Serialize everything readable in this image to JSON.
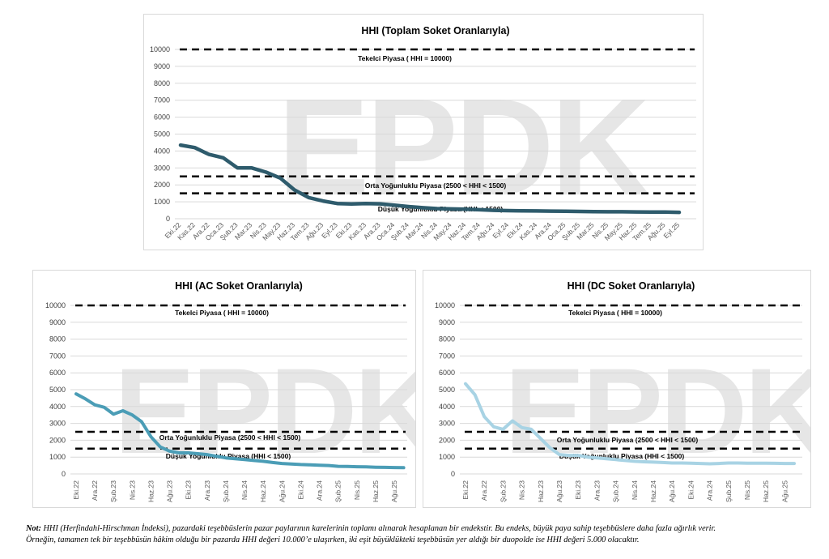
{
  "watermark": "EPDK",
  "colors": {
    "total": "#2e5b6c",
    "ac": "#4b9db6",
    "dc": "#a8d3e4",
    "ref": "#000000",
    "grid": "#d9d9d9"
  },
  "chart_data": [
    {
      "id": "total",
      "type": "line",
      "title": "HHI (Toplam Soket Oranlarıyla)",
      "xlabel": "",
      "ylabel": "",
      "ylim": [
        0,
        10000
      ],
      "yticks": [
        0,
        1000,
        2000,
        3000,
        4000,
        5000,
        6000,
        7000,
        8000,
        9000,
        10000
      ],
      "grid": true,
      "categories": [
        "Eki.22",
        "Kas.22",
        "Ara.22",
        "Oca.23",
        "Şub.23",
        "Mar.23",
        "Nis.23",
        "May.23",
        "Haz.23",
        "Tem.23",
        "Ağu.23",
        "Eyl.23",
        "Eki.23",
        "Kas.23",
        "Ara.23",
        "Oca.24",
        "Şub.24",
        "Mar.24",
        "Nis.24",
        "May.24",
        "Haz.24",
        "Tem.24",
        "Ağu.24",
        "Eyl.24",
        "Eki.24",
        "Kas.24",
        "Ara.24",
        "Oca.25",
        "Şub.25",
        "Mar.25",
        "Nis.25",
        "May.25",
        "Haz.25",
        "Tem.25",
        "Ağu.25",
        "Eyl.25"
      ],
      "tick_every": 1,
      "series": [
        {
          "name": "HHI",
          "values": [
            4350,
            4200,
            3800,
            3600,
            3000,
            3000,
            2750,
            2400,
            1700,
            1250,
            1050,
            900,
            870,
            900,
            880,
            800,
            720,
            650,
            600,
            580,
            560,
            530,
            500,
            480,
            470,
            460,
            450,
            440,
            430,
            420,
            410,
            410,
            400,
            390,
            390,
            380
          ]
        }
      ],
      "reference_lines": [
        {
          "value": 10000,
          "label": "Tekelci Piyasa ( HHI = 10000)"
        },
        {
          "value": 2500,
          "label": "Orta Yoğunluklu Piyasa (2500 < HHI < 1500)"
        },
        {
          "value": 1500,
          "label": "Düşük Yoğunluklu Piyasa (HHI < 1500)"
        }
      ]
    },
    {
      "id": "ac",
      "type": "line",
      "title": "HHI (AC Soket Oranlarıyla)",
      "xlabel": "",
      "ylabel": "",
      "ylim": [
        0,
        10000
      ],
      "yticks": [
        0,
        1000,
        2000,
        3000,
        4000,
        5000,
        6000,
        7000,
        8000,
        9000,
        10000
      ],
      "grid": true,
      "categories": [
        "Eki.22",
        "Kas.22",
        "Ara.22",
        "Oca.23",
        "Şub.23",
        "Mar.23",
        "Nis.23",
        "May.23",
        "Haz.23",
        "Tem.23",
        "Ağu.23",
        "Eyl.23",
        "Eki.23",
        "Kas.23",
        "Ara.23",
        "Oca.24",
        "Şub.24",
        "Mar.24",
        "Nis.24",
        "May.24",
        "Haz.24",
        "Tem.24",
        "Ağu.24",
        "Eyl.24",
        "Eki.24",
        "Kas.24",
        "Ara.24",
        "Oca.25",
        "Şub.25",
        "Mar.25",
        "Nis.25",
        "May.25",
        "Haz.25",
        "Tem.25",
        "Ağu.25",
        "Eyl.25"
      ],
      "tick_every": 2,
      "series": [
        {
          "name": "HHI",
          "values": [
            4750,
            4450,
            4100,
            3950,
            3550,
            3750,
            3500,
            3100,
            2200,
            1600,
            1350,
            1250,
            1250,
            1200,
            1150,
            1050,
            950,
            900,
            850,
            800,
            750,
            680,
            620,
            590,
            560,
            540,
            520,
            500,
            450,
            440,
            430,
            420,
            400,
            390,
            380,
            370
          ]
        }
      ],
      "reference_lines": [
        {
          "value": 10000,
          "label": "Tekelci Piyasa ( HHI = 10000)"
        },
        {
          "value": 2500,
          "label": "Orta Yoğunluklu Piyasa (2500 < HHI < 1500)"
        },
        {
          "value": 1500,
          "label": "Düşük Yoğunluklu Piyasa (HHI < 1500)"
        }
      ]
    },
    {
      "id": "dc",
      "type": "line",
      "title": "HHI (DC Soket Oranlarıyla)",
      "xlabel": "",
      "ylabel": "",
      "ylim": [
        0,
        10000
      ],
      "yticks": [
        0,
        1000,
        2000,
        3000,
        4000,
        5000,
        6000,
        7000,
        8000,
        9000,
        10000
      ],
      "grid": true,
      "categories": [
        "Eki.22",
        "Kas.22",
        "Ara.22",
        "Oca.23",
        "Şub.23",
        "Mar.23",
        "Nis.23",
        "May.23",
        "Haz.23",
        "Tem.23",
        "Ağu.23",
        "Eyl.23",
        "Eki.23",
        "Kas.23",
        "Ara.23",
        "Oca.24",
        "Şub.24",
        "Mar.24",
        "Nis.24",
        "May.24",
        "Haz.24",
        "Tem.24",
        "Ağu.24",
        "Eyl.24",
        "Eki.24",
        "Kas.24",
        "Ara.24",
        "Oca.25",
        "Şub.25",
        "Mar.25",
        "Nis.25",
        "May.25",
        "Haz.25",
        "Tem.25",
        "Ağu.25",
        "Eyl.25"
      ],
      "tick_every": 2,
      "series": [
        {
          "name": "HHI",
          "values": [
            5350,
            4700,
            3400,
            2800,
            2650,
            3150,
            2750,
            2650,
            2100,
            1550,
            1150,
            1100,
            1100,
            1000,
            950,
            900,
            850,
            800,
            750,
            720,
            700,
            680,
            650,
            650,
            640,
            620,
            600,
            620,
            650,
            650,
            640,
            640,
            640,
            630,
            620,
            620
          ]
        }
      ],
      "reference_lines": [
        {
          "value": 10000,
          "label": "Tekelci Piyasa ( HHI = 10000)"
        },
        {
          "value": 2500,
          "label": "Orta Yoğunluklu Piyasa (2500 < HHI < 1500)"
        },
        {
          "value": 1500,
          "label": "Düşük Yoğunluklu Piyasa (HHI < 1500)"
        }
      ]
    }
  ],
  "note": {
    "prefix": "Not:",
    "line1": " HHI (Herfindahl-Hirschman İndeksi), pazardaki teşebbüslerin pazar paylarının karelerinin toplamı alınarak hesaplanan bir endekstir. Bu endeks, büyük paya sahip teşebbüslere daha fazla ağırlık verir.",
    "line2": "Örneğin, tamamen tek bir teşebbüsün hâkim olduğu bir pazarda HHI değeri 10.000’e ulaşırken, iki eşit büyüklükteki teşebbüsün yer aldığı bir duopolde ise HHI değeri 5.000 olacaktır."
  }
}
